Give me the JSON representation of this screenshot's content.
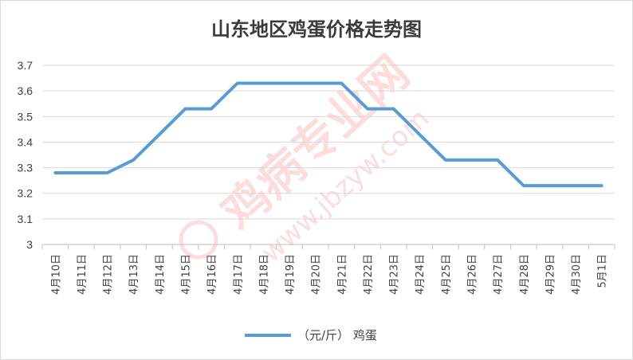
{
  "watermark": {
    "main": "鸡病专业网",
    "url": "www.jbzyw.com",
    "color": "#e8322f"
  },
  "chart_data": {
    "type": "line",
    "title": "山东地区鸡蛋价格走势图",
    "categories": [
      "4月10日",
      "4月11日",
      "4月12日",
      "4月13日",
      "4月14日",
      "4月15日",
      "4月16日",
      "4月17日",
      "4月18日",
      "4月19日",
      "4月20日",
      "4月21日",
      "4月22日",
      "4月23日",
      "4月24日",
      "4月25日",
      "4月26日",
      "4月27日",
      "4月28日",
      "4月29日",
      "4月30日",
      "5月1日"
    ],
    "series": [
      {
        "name": "（元/斤） 鸡蛋",
        "color": "#5b9bd5",
        "values": [
          3.28,
          3.28,
          3.28,
          3.33,
          3.43,
          3.53,
          3.53,
          3.63,
          3.63,
          3.63,
          3.63,
          3.63,
          3.53,
          3.53,
          3.43,
          3.33,
          3.33,
          3.33,
          3.23,
          3.23,
          3.23,
          3.23
        ]
      }
    ],
    "ylim": [
      3,
      3.7
    ],
    "yticks": [
      "3",
      "3.1",
      "3.2",
      "3.3",
      "3.4",
      "3.5",
      "3.6",
      "3.7"
    ],
    "grid": true,
    "legend_position": "bottom",
    "xlabel": "",
    "ylabel": ""
  }
}
